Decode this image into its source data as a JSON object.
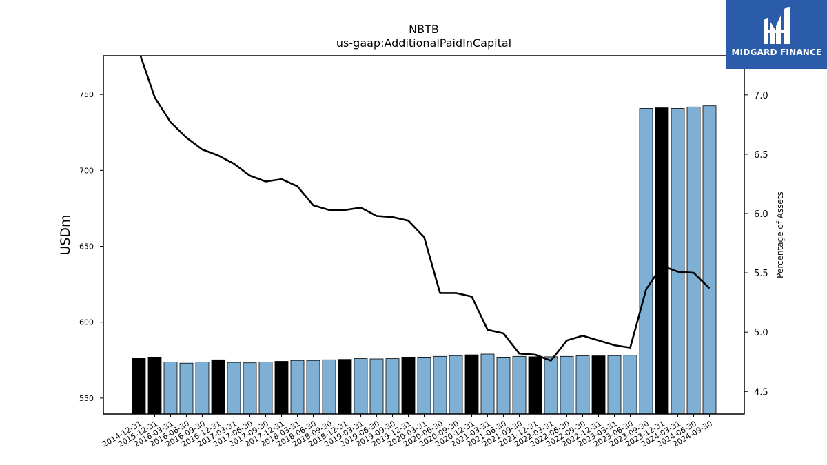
{
  "chart_data": {
    "type": "bar",
    "title": "NBTB",
    "subtitle": "us-gaap:AdditionalPaidInCapital",
    "ylabel": "USDm",
    "y2label": "Percentage of Assets",
    "ylim": [
      539.5,
      775.5
    ],
    "y2lim": [
      4.31,
      7.33
    ],
    "yticks": [
      550,
      600,
      650,
      700,
      750
    ],
    "y2ticks": [
      4.5,
      5.0,
      5.5,
      6.0,
      6.5,
      7.0
    ],
    "y2tick_labels": [
      "4.5",
      "5.0",
      "5.5",
      "6.0",
      "6.5",
      "7.0"
    ],
    "categories": [
      "2014-12-31",
      "2015-12-31",
      "2016-03-31",
      "2016-06-30",
      "2016-09-30",
      "2016-12-31",
      "2017-03-31",
      "2017-06-30",
      "2017-09-30",
      "2017-12-31",
      "2018-03-31",
      "2018-06-30",
      "2018-09-30",
      "2018-12-31",
      "2019-03-31",
      "2019-06-30",
      "2019-09-30",
      "2019-12-31",
      "2020-03-31",
      "2020-06-30",
      "2020-09-30",
      "2020-12-31",
      "2021-03-31",
      "2021-06-30",
      "2021-09-30",
      "2021-12-31",
      "2022-03-31",
      "2022-06-30",
      "2022-09-30",
      "2022-12-31",
      "2023-03-31",
      "2023-06-30",
      "2023-09-30",
      "2023-12-31",
      "2024-03-31",
      "2024-06-30",
      "2024-09-30"
    ],
    "series": [
      {
        "type": "bar",
        "axis": "left",
        "values": [
          576.5,
          577.0,
          573.8,
          573.0,
          573.8,
          575.2,
          573.5,
          573.2,
          573.8,
          574.2,
          574.8,
          574.8,
          575.2,
          575.5,
          576.0,
          575.8,
          576.0,
          577.0,
          577.0,
          577.5,
          578.0,
          578.5,
          579.0,
          577.0,
          577.5,
          577.2,
          577.2,
          577.5,
          577.8,
          577.8,
          578.0,
          578.2,
          740.8,
          741.2,
          740.8,
          741.8,
          742.5
        ],
        "colors": [
          "#000000",
          "#000000",
          "#7eb0d5",
          "#7eb0d5",
          "#7eb0d5",
          "#000000",
          "#7eb0d5",
          "#7eb0d5",
          "#7eb0d5",
          "#000000",
          "#7eb0d5",
          "#7eb0d5",
          "#7eb0d5",
          "#000000",
          "#7eb0d5",
          "#7eb0d5",
          "#7eb0d5",
          "#000000",
          "#7eb0d5",
          "#7eb0d5",
          "#7eb0d5",
          "#000000",
          "#7eb0d5",
          "#7eb0d5",
          "#7eb0d5",
          "#000000",
          "#7eb0d5",
          "#7eb0d5",
          "#7eb0d5",
          "#000000",
          "#7eb0d5",
          "#7eb0d5",
          "#7eb0d5",
          "#000000",
          "#7eb0d5",
          "#7eb0d5",
          "#7eb0d5"
        ]
      },
      {
        "type": "line",
        "axis": "right",
        "color": "#000000",
        "values": [
          7.37,
          6.98,
          6.77,
          6.64,
          6.54,
          6.49,
          6.42,
          6.32,
          6.27,
          6.29,
          6.23,
          6.07,
          6.03,
          6.03,
          6.05,
          5.98,
          5.97,
          5.94,
          5.8,
          5.33,
          5.33,
          5.3,
          5.02,
          4.99,
          4.82,
          4.81,
          4.76,
          4.93,
          4.97,
          4.93,
          4.89,
          4.87,
          5.36,
          5.56,
          5.51,
          5.5,
          5.37
        ]
      }
    ],
    "colors": {
      "annual": "#000000",
      "quarterly": "#7eb0d5",
      "line": "#000000"
    }
  },
  "logo": {
    "text": "MIDGARD FINANCE",
    "icon": "midgard-logo-icon",
    "bg": "#2a5caa"
  }
}
